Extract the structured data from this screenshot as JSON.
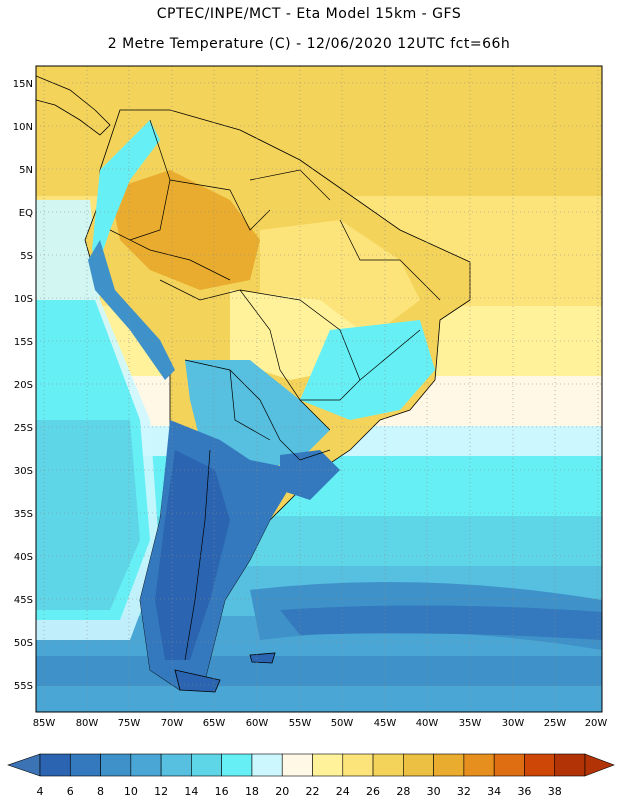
{
  "title_line1": "CPTEC/INPE/MCT -  Eta Model 15km - GFS",
  "title_line2": "2 Metre Temperature (C) - 12/06/2020 12UTC fct=66h",
  "lat_labels": [
    "15N",
    "10N",
    "5N",
    "EQ",
    "5S",
    "10S",
    "15S",
    "20S",
    "25S",
    "30S",
    "35S",
    "40S",
    "45S",
    "50S",
    "55S"
  ],
  "lon_labels": [
    "85W",
    "80W",
    "75W",
    "70W",
    "65W",
    "60W",
    "55W",
    "50W",
    "45W",
    "40W",
    "35W",
    "30W",
    "25W",
    "20W"
  ],
  "colorbar": {
    "labels": [
      "4",
      "6",
      "8",
      "10",
      "12",
      "14",
      "16",
      "18",
      "20",
      "22",
      "24",
      "26",
      "28",
      "30",
      "32",
      "34",
      "36",
      "38"
    ],
    "colors": [
      "#2b64b0",
      "#3479bd",
      "#3e92c9",
      "#4aa6d4",
      "#57bfdf",
      "#5fd6e8",
      "#66f0f5",
      "#cdf7ff",
      "#fff8e6",
      "#fff29a",
      "#fce47a",
      "#f4d35a",
      "#ecc043",
      "#e9ac2e",
      "#e78f1e",
      "#df6d12",
      "#cf4706",
      "#b23305"
    ],
    "left_arrow": "#3b73b4",
    "right_arrow": "#b23305"
  }
}
